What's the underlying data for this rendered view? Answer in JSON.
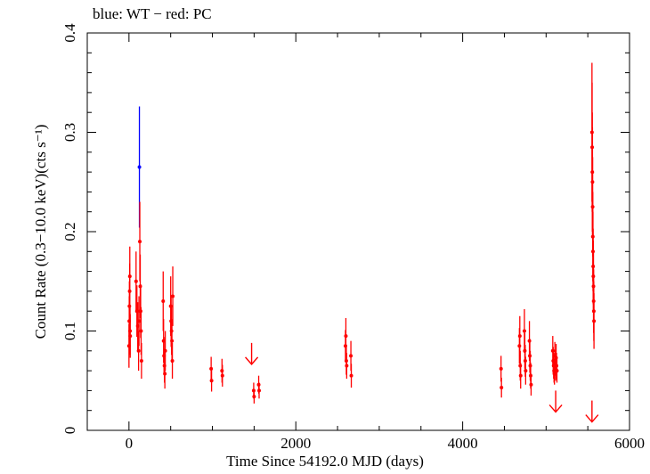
{
  "chart_data": {
    "type": "scatter",
    "title": "blue: WT − red: PC",
    "xlabel": "Time Since 54192.0 MJD (days)",
    "ylabel": "Count Rate (0.3−10.0 keV)(cts s⁻¹)",
    "xlim": [
      -500,
      6000
    ],
    "ylim": [
      0,
      0.4
    ],
    "xticks": [
      0,
      2000,
      4000,
      6000
    ],
    "yticks": [
      0,
      0.1,
      0.2,
      0.3,
      0.4
    ],
    "xtick_labels": [
      "0",
      "2000",
      "4000",
      "6000"
    ],
    "ytick_labels": [
      "0",
      "0.1",
      "0.2",
      "0.3",
      "0.4"
    ],
    "grid": false,
    "series": [
      {
        "name": "WT",
        "color": "#0000ff",
        "points": [
          {
            "x": 125,
            "y": 0.265,
            "err": 0.061
          }
        ]
      },
      {
        "name": "PC",
        "color": "#ff0000",
        "points": [
          {
            "x": 0,
            "y": 0.085,
            "err": 0.022
          },
          {
            "x": 3,
            "y": 0.11,
            "err": 0.025
          },
          {
            "x": 5,
            "y": 0.125,
            "err": 0.025
          },
          {
            "x": 8,
            "y": 0.14,
            "err": 0.028
          },
          {
            "x": 10,
            "y": 0.155,
            "err": 0.03
          },
          {
            "x": 13,
            "y": 0.1,
            "err": 0.024
          },
          {
            "x": 15,
            "y": 0.095,
            "err": 0.022
          },
          {
            "x": 85,
            "y": 0.15,
            "err": 0.03
          },
          {
            "x": 95,
            "y": 0.12,
            "err": 0.026
          },
          {
            "x": 105,
            "y": 0.105,
            "err": 0.024
          },
          {
            "x": 115,
            "y": 0.08,
            "err": 0.02
          },
          {
            "x": 120,
            "y": 0.11,
            "err": 0.025
          },
          {
            "x": 130,
            "y": 0.19,
            "err": 0.04
          },
          {
            "x": 135,
            "y": 0.145,
            "err": 0.032
          },
          {
            "x": 140,
            "y": 0.12,
            "err": 0.027
          },
          {
            "x": 145,
            "y": 0.1,
            "err": 0.024
          },
          {
            "x": 150,
            "y": 0.07,
            "err": 0.018
          },
          {
            "x": 410,
            "y": 0.13,
            "err": 0.03
          },
          {
            "x": 415,
            "y": 0.09,
            "err": 0.022
          },
          {
            "x": 420,
            "y": 0.075,
            "err": 0.019
          },
          {
            "x": 425,
            "y": 0.065,
            "err": 0.017
          },
          {
            "x": 430,
            "y": 0.057,
            "err": 0.015
          },
          {
            "x": 435,
            "y": 0.08,
            "err": 0.02
          },
          {
            "x": 500,
            "y": 0.125,
            "err": 0.03
          },
          {
            "x": 505,
            "y": 0.11,
            "err": 0.026
          },
          {
            "x": 510,
            "y": 0.1,
            "err": 0.024
          },
          {
            "x": 515,
            "y": 0.09,
            "err": 0.022
          },
          {
            "x": 520,
            "y": 0.07,
            "err": 0.018
          },
          {
            "x": 525,
            "y": 0.135,
            "err": 0.03
          },
          {
            "x": 985,
            "y": 0.062,
            "err": 0.012
          },
          {
            "x": 990,
            "y": 0.05,
            "err": 0.011
          },
          {
            "x": 1115,
            "y": 0.06,
            "err": 0.012
          },
          {
            "x": 1120,
            "y": 0.055,
            "err": 0.011
          },
          {
            "x": 1495,
            "y": 0.04,
            "err": 0.008
          },
          {
            "x": 1500,
            "y": 0.034,
            "err": 0.007
          },
          {
            "x": 1555,
            "y": 0.046,
            "err": 0.009
          },
          {
            "x": 1560,
            "y": 0.04,
            "err": 0.008
          },
          {
            "x": 2595,
            "y": 0.085,
            "err": 0.016
          },
          {
            "x": 2600,
            "y": 0.095,
            "err": 0.018
          },
          {
            "x": 2605,
            "y": 0.07,
            "err": 0.014
          },
          {
            "x": 2610,
            "y": 0.065,
            "err": 0.013
          },
          {
            "x": 2660,
            "y": 0.075,
            "err": 0.015
          },
          {
            "x": 2665,
            "y": 0.055,
            "err": 0.012
          },
          {
            "x": 4460,
            "y": 0.062,
            "err": 0.013
          },
          {
            "x": 4465,
            "y": 0.043,
            "err": 0.01
          },
          {
            "x": 4680,
            "y": 0.085,
            "err": 0.018
          },
          {
            "x": 4685,
            "y": 0.095,
            "err": 0.02
          },
          {
            "x": 4690,
            "y": 0.065,
            "err": 0.015
          },
          {
            "x": 4695,
            "y": 0.055,
            "err": 0.013
          },
          {
            "x": 4740,
            "y": 0.1,
            "err": 0.022
          },
          {
            "x": 4745,
            "y": 0.08,
            "err": 0.018
          },
          {
            "x": 4750,
            "y": 0.07,
            "err": 0.016
          },
          {
            "x": 4755,
            "y": 0.06,
            "err": 0.014
          },
          {
            "x": 4800,
            "y": 0.09,
            "err": 0.02
          },
          {
            "x": 4805,
            "y": 0.075,
            "err": 0.017
          },
          {
            "x": 4810,
            "y": 0.065,
            "err": 0.015
          },
          {
            "x": 4815,
            "y": 0.055,
            "err": 0.013
          },
          {
            "x": 4820,
            "y": 0.046,
            "err": 0.011
          },
          {
            "x": 5080,
            "y": 0.08,
            "err": 0.015
          },
          {
            "x": 5085,
            "y": 0.07,
            "err": 0.014
          },
          {
            "x": 5090,
            "y": 0.065,
            "err": 0.013
          },
          {
            "x": 5095,
            "y": 0.06,
            "err": 0.012
          },
          {
            "x": 5100,
            "y": 0.058,
            "err": 0.012
          },
          {
            "x": 5105,
            "y": 0.075,
            "err": 0.014
          },
          {
            "x": 5110,
            "y": 0.068,
            "err": 0.013
          },
          {
            "x": 5115,
            "y": 0.062,
            "err": 0.012
          },
          {
            "x": 5120,
            "y": 0.073,
            "err": 0.014
          },
          {
            "x": 5125,
            "y": 0.065,
            "err": 0.013
          },
          {
            "x": 5130,
            "y": 0.06,
            "err": 0.012
          },
          {
            "x": 5550,
            "y": 0.3,
            "err": 0.07
          },
          {
            "x": 5552,
            "y": 0.285,
            "err": 0.065
          },
          {
            "x": 5554,
            "y": 0.26,
            "err": 0.06
          },
          {
            "x": 5556,
            "y": 0.25,
            "err": 0.055
          },
          {
            "x": 5558,
            "y": 0.225,
            "err": 0.05
          },
          {
            "x": 5560,
            "y": 0.195,
            "err": 0.045
          },
          {
            "x": 5562,
            "y": 0.18,
            "err": 0.04
          },
          {
            "x": 5564,
            "y": 0.165,
            "err": 0.038
          },
          {
            "x": 5566,
            "y": 0.155,
            "err": 0.036
          },
          {
            "x": 5568,
            "y": 0.145,
            "err": 0.034
          },
          {
            "x": 5570,
            "y": 0.13,
            "err": 0.032
          },
          {
            "x": 5572,
            "y": 0.12,
            "err": 0.03
          },
          {
            "x": 5574,
            "y": 0.11,
            "err": 0.028
          }
        ]
      }
    ],
    "upper_limits": [
      {
        "x": 1470,
        "y": 0.088,
        "color": "#ff0000"
      },
      {
        "x": 5115,
        "y": 0.04,
        "color": "#ff0000"
      },
      {
        "x": 5550,
        "y": 0.03,
        "color": "#ff0000"
      }
    ]
  }
}
